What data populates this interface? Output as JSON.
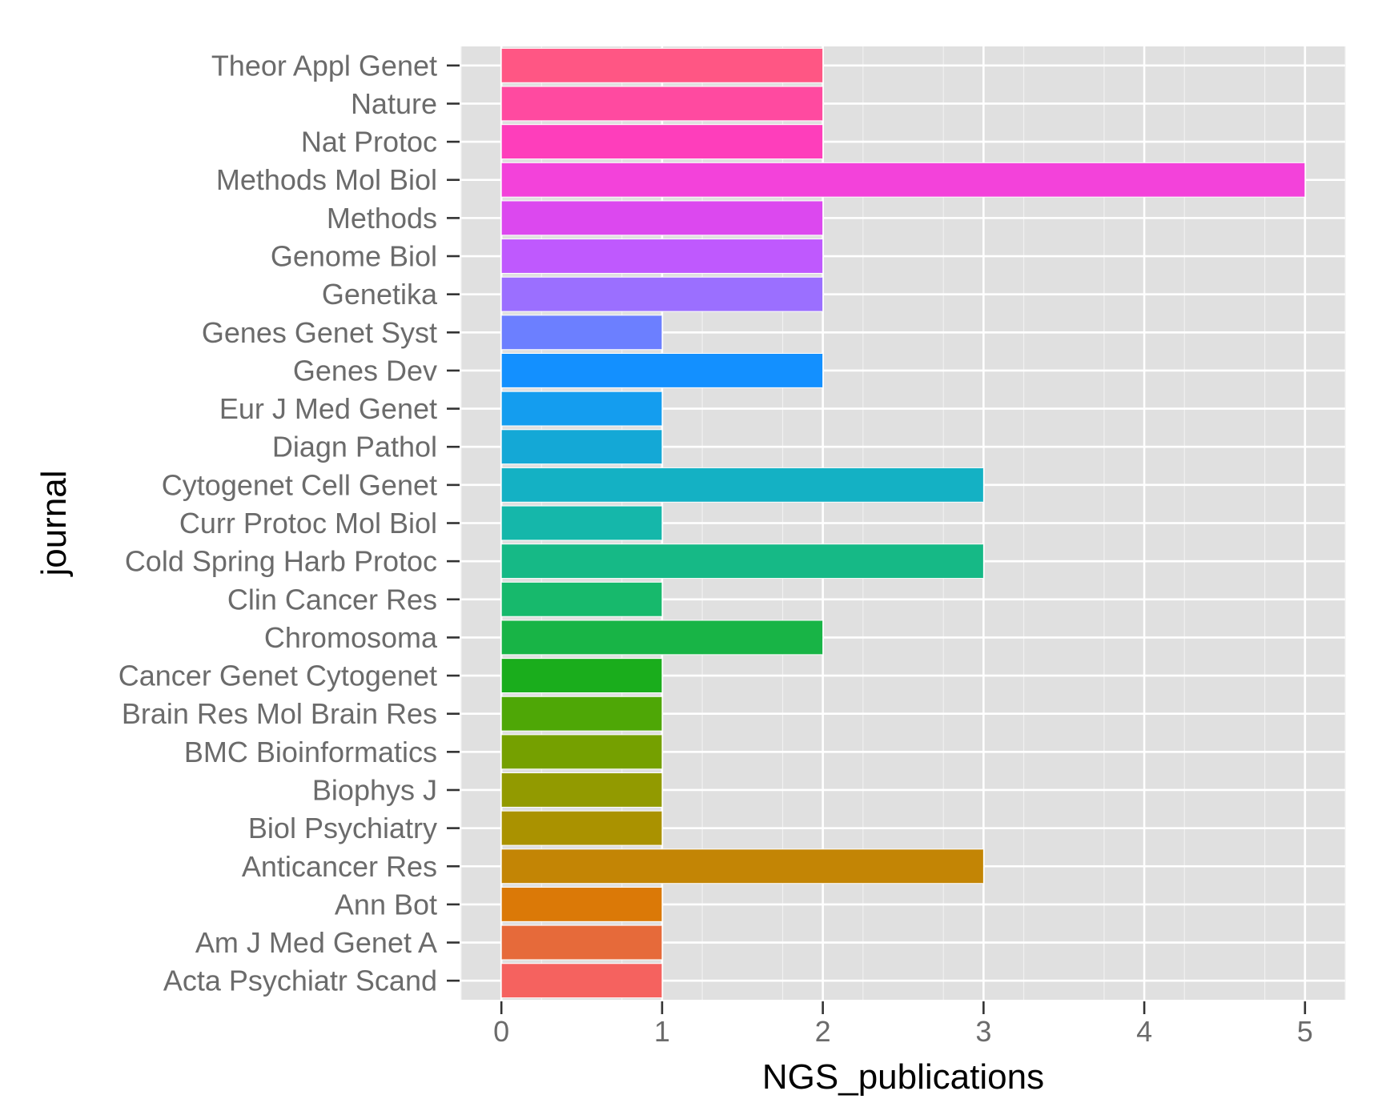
{
  "chart_data": {
    "type": "bar",
    "orientation": "horizontal",
    "xlabel": "NGS_publications",
    "ylabel": "journal",
    "xlim": [
      -0.25,
      5.25
    ],
    "xticks": [
      0,
      1,
      2,
      3,
      4,
      5
    ],
    "grid": true,
    "legend": "none",
    "categories": [
      "Theor Appl Genet",
      "Nature",
      "Nat Protoc",
      "Methods Mol Biol",
      "Methods",
      "Genome Biol",
      "Genetika",
      "Genes Genet Syst",
      "Genes Dev",
      "Eur J Med Genet",
      "Diagn Pathol",
      "Cytogenet Cell Genet",
      "Curr Protoc Mol Biol",
      "Cold Spring Harb Protoc",
      "Clin Cancer Res",
      "Chromosoma",
      "Cancer Genet Cytogenet",
      "Brain Res Mol Brain Res",
      "BMC Bioinformatics",
      "Biophys J",
      "Biol Psychiatry",
      "Anticancer Res",
      "Ann Bot",
      "Am J Med Genet A",
      "Acta Psychiatr Scand"
    ],
    "values": [
      2,
      2,
      2,
      5,
      2,
      2,
      2,
      1,
      2,
      1,
      1,
      3,
      1,
      3,
      1,
      2,
      1,
      1,
      1,
      1,
      1,
      3,
      1,
      1,
      1
    ],
    "colors": [
      "#FF5684",
      "#FF4AA0",
      "#FE3EBB",
      "#F342DA",
      "#DC48EF",
      "#BF59FE",
      "#9B6FFF",
      "#6C7FFF",
      "#1390FF",
      "#149DEF",
      "#14A8D6",
      "#14B1C4",
      "#15B7AA",
      "#16B986",
      "#17B96C",
      "#18B446",
      "#1AAD1C",
      "#4EA706",
      "#75A000",
      "#929A00",
      "#AA9200",
      "#C38505",
      "#DB7907",
      "#E66A3A",
      "#F5625F"
    ],
    "panel_background": "#E0E0E0",
    "grid_color": "#FFFFFF"
  }
}
